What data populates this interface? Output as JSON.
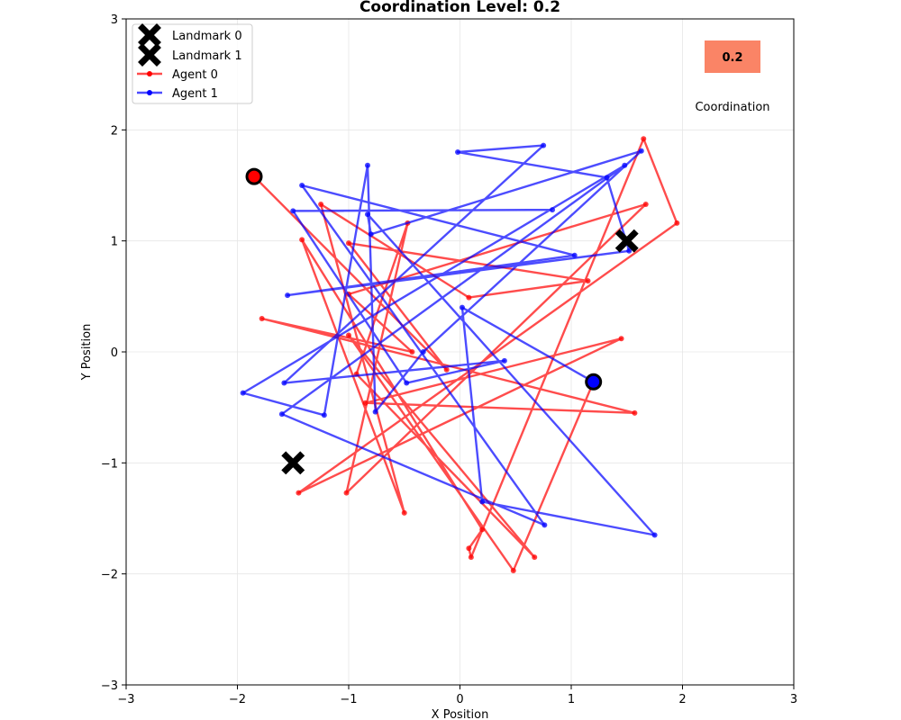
{
  "chart_data": {
    "type": "line",
    "title": "Coordination Level: 0.2",
    "xlabel": "X Position",
    "ylabel": "Y Position",
    "xlim": [
      -3,
      3
    ],
    "ylim": [
      -3,
      3
    ],
    "xticks": [
      "−3",
      "−2",
      "−1",
      "0",
      "1",
      "2",
      "3"
    ],
    "yticks": [
      "−3",
      "−2",
      "−1",
      "0",
      "1",
      "2",
      "3"
    ],
    "grid": true,
    "legend_position": "top-left",
    "landmarks": [
      {
        "name": "Landmark 0",
        "x": 1.5,
        "y": 1.0
      },
      {
        "name": "Landmark 1",
        "x": -1.5,
        "y": -1.0
      }
    ],
    "series": [
      {
        "name": "Agent 0",
        "color": "#ff0000",
        "points": [
          [
            -1.85,
            1.58
          ],
          [
            -0.12,
            -0.16
          ],
          [
            -1.0,
            0.98
          ],
          [
            1.15,
            0.64
          ],
          [
            0.08,
            0.49
          ],
          [
            -1.25,
            1.33
          ],
          [
            -0.5,
            -1.45
          ],
          [
            -1.42,
            1.01
          ],
          [
            0.2,
            -1.6
          ],
          [
            0.08,
            -1.77
          ],
          [
            0.1,
            -1.85
          ],
          [
            1.65,
            1.92
          ],
          [
            1.95,
            1.16
          ],
          [
            -1.45,
            -1.27
          ],
          [
            1.45,
            0.12
          ],
          [
            -0.85,
            -0.46
          ],
          [
            1.57,
            -0.55
          ],
          [
            -1.78,
            0.3
          ],
          [
            -0.43,
            0.0
          ],
          [
            -1.0,
            0.52
          ],
          [
            1.67,
            1.33
          ],
          [
            -1.02,
            -1.27
          ],
          [
            -0.47,
            1.16
          ],
          [
            -0.93,
            -0.2
          ],
          [
            0.67,
            -1.85
          ],
          [
            -1.0,
            0.15
          ],
          [
            0.48,
            -1.97
          ],
          [
            1.2,
            -0.27
          ]
        ]
      },
      {
        "name": "Agent 1",
        "color": "#0000ff",
        "points": [
          [
            1.2,
            -0.27
          ],
          [
            0.02,
            0.4
          ],
          [
            0.2,
            -1.35
          ],
          [
            1.75,
            -1.65
          ],
          [
            -0.83,
            1.24
          ],
          [
            -0.8,
            1.06
          ],
          [
            1.63,
            1.81
          ],
          [
            -0.33,
            0.0
          ],
          [
            -0.76,
            -0.54
          ],
          [
            -0.83,
            1.68
          ],
          [
            -1.22,
            -0.57
          ],
          [
            -1.95,
            -0.37
          ],
          [
            1.48,
            1.68
          ],
          [
            -1.6,
            -0.56
          ],
          [
            0.76,
            -1.56
          ],
          [
            -1.42,
            1.5
          ],
          [
            1.03,
            0.87
          ],
          [
            -1.55,
            0.51
          ],
          [
            1.52,
            0.91
          ],
          [
            1.32,
            1.57
          ],
          [
            -0.02,
            1.8
          ],
          [
            0.75,
            1.86
          ],
          [
            -1.58,
            -0.28
          ],
          [
            0.4,
            -0.08
          ],
          [
            -0.48,
            -0.28
          ],
          [
            -1.5,
            1.27
          ],
          [
            0.83,
            1.28
          ]
        ]
      }
    ],
    "start_markers": [
      {
        "series": "Agent 0",
        "x": -1.85,
        "y": 1.58,
        "color": "#ff0000"
      },
      {
        "series": "Agent 1",
        "x": 1.2,
        "y": -0.27,
        "color": "#0000ff"
      }
    ],
    "coordination_badge": {
      "value": "0.2",
      "label": "Coordination",
      "color": "#fa8466"
    }
  }
}
